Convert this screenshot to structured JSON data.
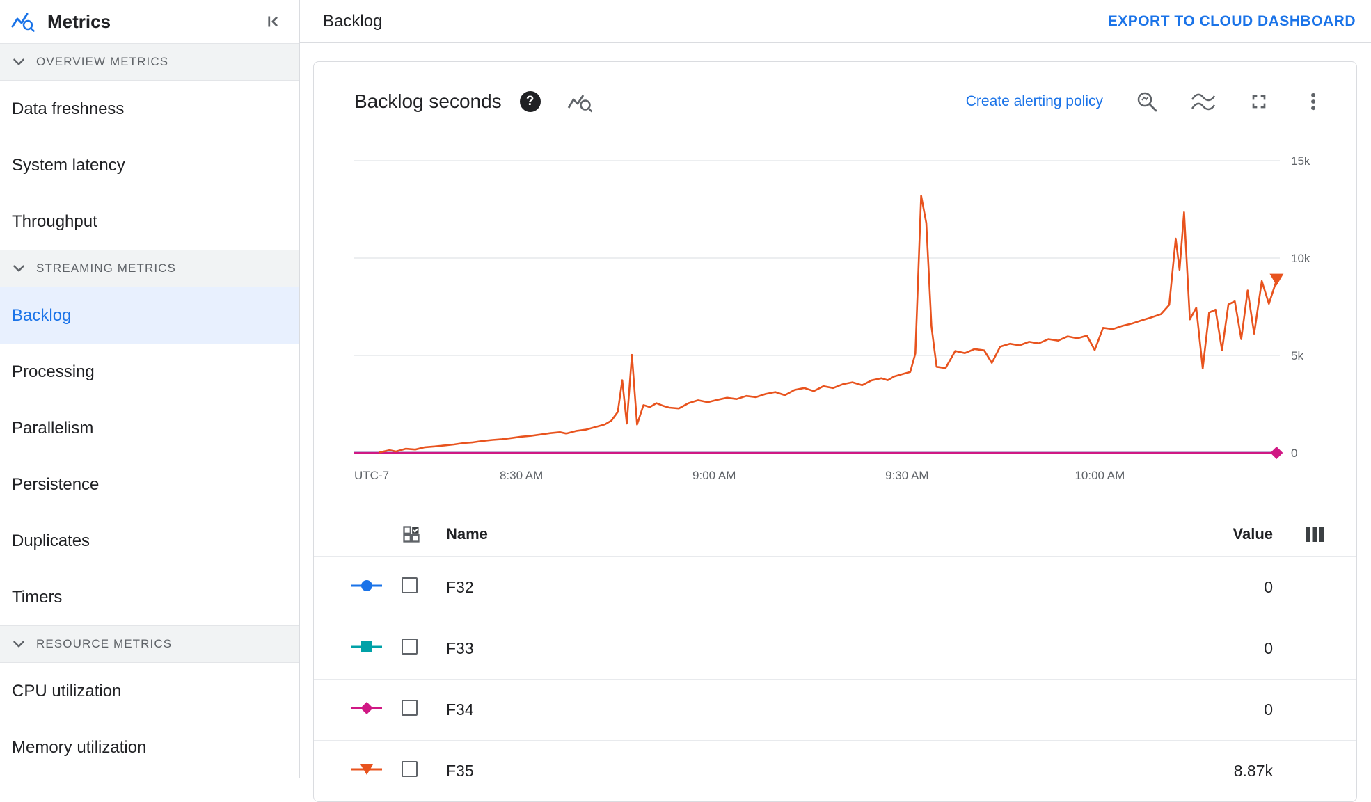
{
  "sidebar": {
    "title": "Metrics",
    "sections": [
      {
        "label": "OVERVIEW METRICS",
        "items": [
          {
            "label": "Data freshness",
            "selected": false
          },
          {
            "label": "System latency",
            "selected": false
          },
          {
            "label": "Throughput",
            "selected": false
          }
        ]
      },
      {
        "label": "STREAMING METRICS",
        "items": [
          {
            "label": "Backlog",
            "selected": true
          },
          {
            "label": "Processing",
            "selected": false
          },
          {
            "label": "Parallelism",
            "selected": false
          },
          {
            "label": "Persistence",
            "selected": false
          },
          {
            "label": "Duplicates",
            "selected": false
          },
          {
            "label": "Timers",
            "selected": false
          }
        ]
      },
      {
        "label": "RESOURCE METRICS",
        "items": [
          {
            "label": "CPU utilization",
            "selected": false
          },
          {
            "label": "Memory utilization",
            "selected": false
          }
        ]
      }
    ]
  },
  "header": {
    "title": "Backlog",
    "export_label": "EXPORT TO CLOUD DASHBOARD"
  },
  "chart_card": {
    "title": "Backlog seconds",
    "create_alerting_label": "Create alerting policy"
  },
  "chart_data": {
    "type": "line",
    "title": "Backlog seconds",
    "grid": true,
    "x_axis": {
      "timezone_label": "UTC-7",
      "domain_minutes": [
        484,
        628
      ],
      "ticks": [
        {
          "minute": 510,
          "label": "8:30 AM"
        },
        {
          "minute": 540,
          "label": "9:00 AM"
        },
        {
          "minute": 570,
          "label": "9:30 AM"
        },
        {
          "minute": 600,
          "label": "10:00 AM"
        }
      ]
    },
    "y_axis": {
      "max": 16430,
      "ticks": [
        {
          "value": 0,
          "label": "0"
        },
        {
          "value": 5000,
          "label": "5k"
        },
        {
          "value": 10000,
          "label": "10k"
        },
        {
          "value": 15000,
          "label": "15k"
        }
      ]
    },
    "series": [
      {
        "name": "F32",
        "color": "#1a73e8",
        "marker": "circle",
        "end_marker": false,
        "current_value": 0,
        "points": [
          [
            484,
            0
          ],
          [
            627.5,
            0
          ]
        ]
      },
      {
        "name": "F33",
        "color": "#00a1a7",
        "marker": "square",
        "end_marker": false,
        "current_value": 0,
        "points": [
          [
            484,
            0
          ],
          [
            627.5,
            0
          ]
        ]
      },
      {
        "name": "F34",
        "color": "#d01884",
        "marker": "diamond",
        "end_marker": true,
        "current_value": 0,
        "points": [
          [
            484,
            0
          ],
          [
            627.5,
            0
          ]
        ]
      },
      {
        "name": "F35",
        "color": "#e8531e",
        "marker": "triangle-down",
        "end_marker": true,
        "current_value": 8870,
        "points": [
          [
            488,
            30
          ],
          [
            489.5,
            140
          ],
          [
            490.5,
            70
          ],
          [
            492,
            210
          ],
          [
            493.5,
            170
          ],
          [
            495,
            290
          ],
          [
            496.5,
            330
          ],
          [
            498,
            380
          ],
          [
            499.5,
            430
          ],
          [
            501,
            500
          ],
          [
            502.5,
            540
          ],
          [
            504,
            610
          ],
          [
            505.5,
            660
          ],
          [
            507,
            700
          ],
          [
            508.5,
            760
          ],
          [
            510,
            830
          ],
          [
            511.5,
            870
          ],
          [
            513,
            940
          ],
          [
            514.5,
            1010
          ],
          [
            516,
            1060
          ],
          [
            517,
            990
          ],
          [
            518.5,
            1120
          ],
          [
            520,
            1190
          ],
          [
            521.5,
            1320
          ],
          [
            523,
            1460
          ],
          [
            524,
            1650
          ],
          [
            525,
            2100
          ],
          [
            525.7,
            3730
          ],
          [
            526.4,
            1500
          ],
          [
            527.2,
            5030
          ],
          [
            528,
            1450
          ],
          [
            529,
            2450
          ],
          [
            530,
            2350
          ],
          [
            531,
            2550
          ],
          [
            532,
            2420
          ],
          [
            533,
            2320
          ],
          [
            534.5,
            2280
          ],
          [
            536,
            2550
          ],
          [
            537.5,
            2700
          ],
          [
            539,
            2600
          ],
          [
            540.5,
            2720
          ],
          [
            542,
            2830
          ],
          [
            543.5,
            2760
          ],
          [
            545,
            2920
          ],
          [
            546.5,
            2860
          ],
          [
            548,
            3020
          ],
          [
            549.5,
            3120
          ],
          [
            551,
            2960
          ],
          [
            552.5,
            3230
          ],
          [
            554,
            3330
          ],
          [
            555.5,
            3170
          ],
          [
            557,
            3420
          ],
          [
            558.5,
            3330
          ],
          [
            560,
            3520
          ],
          [
            561.5,
            3620
          ],
          [
            563,
            3470
          ],
          [
            564.5,
            3720
          ],
          [
            566,
            3830
          ],
          [
            567,
            3730
          ],
          [
            568,
            3920
          ],
          [
            569.5,
            4060
          ],
          [
            570.5,
            4150
          ],
          [
            571.3,
            5100
          ],
          [
            572.2,
            13200
          ],
          [
            573,
            11800
          ],
          [
            573.8,
            6500
          ],
          [
            574.6,
            4420
          ],
          [
            576,
            4350
          ],
          [
            577.5,
            5230
          ],
          [
            579,
            5120
          ],
          [
            580.5,
            5330
          ],
          [
            582,
            5260
          ],
          [
            583.2,
            4620
          ],
          [
            584.5,
            5450
          ],
          [
            586,
            5600
          ],
          [
            587.5,
            5520
          ],
          [
            589,
            5700
          ],
          [
            590.5,
            5620
          ],
          [
            592,
            5840
          ],
          [
            593.5,
            5760
          ],
          [
            595,
            5980
          ],
          [
            596.5,
            5880
          ],
          [
            598,
            6020
          ],
          [
            599.2,
            5280
          ],
          [
            600.5,
            6420
          ],
          [
            602,
            6350
          ],
          [
            603.5,
            6520
          ],
          [
            605,
            6640
          ],
          [
            606.5,
            6800
          ],
          [
            608,
            6950
          ],
          [
            609.5,
            7120
          ],
          [
            610.8,
            7600
          ],
          [
            611.8,
            11000
          ],
          [
            612.4,
            9400
          ],
          [
            613.1,
            12350
          ],
          [
            614,
            6850
          ],
          [
            615,
            7450
          ],
          [
            616,
            4330
          ],
          [
            617,
            7200
          ],
          [
            618,
            7350
          ],
          [
            619,
            5260
          ],
          [
            620,
            7620
          ],
          [
            621,
            7780
          ],
          [
            622,
            5840
          ],
          [
            623,
            8340
          ],
          [
            624,
            6120
          ],
          [
            625.2,
            8820
          ],
          [
            626.3,
            7650
          ],
          [
            627.5,
            8870
          ]
        ]
      }
    ]
  },
  "legend_table": {
    "name_header": "Name",
    "value_header": "Value",
    "rows": [
      {
        "name": "F32",
        "value": "0",
        "color": "#1a73e8",
        "marker": "circle"
      },
      {
        "name": "F33",
        "value": "0",
        "color": "#00a1a7",
        "marker": "square"
      },
      {
        "name": "F34",
        "value": "0",
        "color": "#d01884",
        "marker": "diamond"
      },
      {
        "name": "F35",
        "value": "8.87k",
        "color": "#e8531e",
        "marker": "triangle-down"
      }
    ]
  }
}
